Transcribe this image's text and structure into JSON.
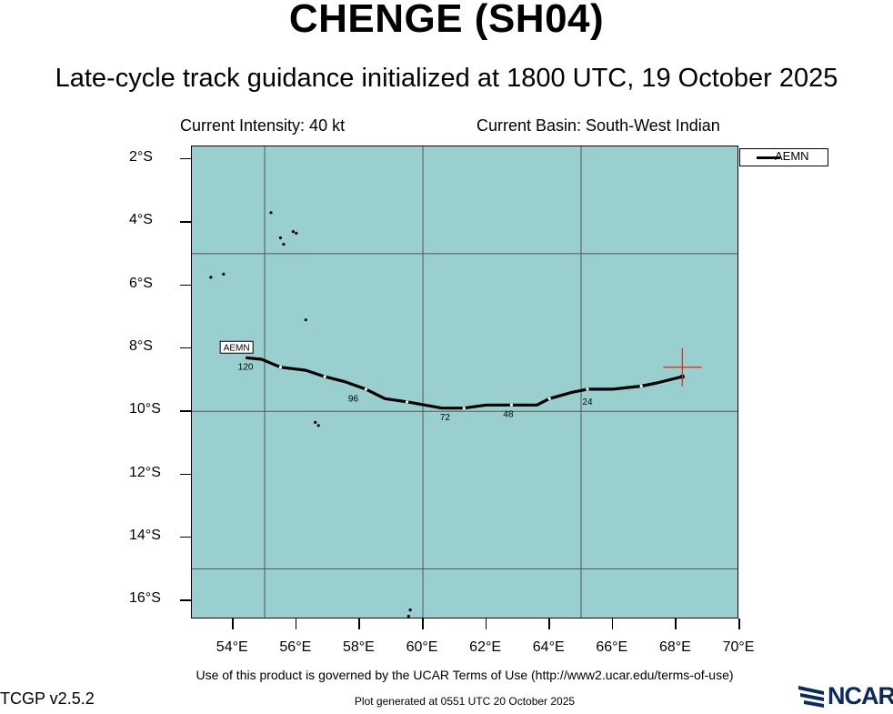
{
  "title": "CHENGE (SH04)",
  "subtitle": "Late-cycle track guidance initialized at 1800 UTC, 19 October 2025",
  "current_intensity": "Current Intensity: 40 kt",
  "current_basin": "Current Basin: South-West Indian",
  "legend": {
    "label": "AEMN"
  },
  "axes": {
    "lat_labels": [
      "2°S",
      "4°S",
      "6°S",
      "8°S",
      "10°S",
      "12°S",
      "14°S",
      "16°S"
    ],
    "lon_labels": [
      "54°E",
      "56°E",
      "58°E",
      "60°E",
      "62°E",
      "64°E",
      "66°E",
      "68°E",
      "70°E"
    ],
    "lon_range": [
      52.7,
      70.0
    ],
    "lat_range": [
      -1.6,
      -16.6
    ]
  },
  "map_data": {
    "track_name": "AEMN",
    "track_points": [
      [
        68.2,
        -8.9
      ],
      [
        67.4,
        -9.1
      ],
      [
        66.9,
        -9.2
      ],
      [
        66.0,
        -9.3
      ],
      [
        65.2,
        -9.3
      ],
      [
        64.7,
        -9.4
      ],
      [
        64.0,
        -9.6
      ],
      [
        63.6,
        -9.8
      ],
      [
        62.8,
        -9.8
      ],
      [
        62.0,
        -9.8
      ],
      [
        61.3,
        -9.9
      ],
      [
        60.6,
        -9.9
      ],
      [
        59.5,
        -9.7
      ],
      [
        58.8,
        -9.6
      ],
      [
        58.2,
        -9.3
      ],
      [
        57.5,
        -9.05
      ],
      [
        56.9,
        -8.9
      ],
      [
        56.3,
        -8.7
      ],
      [
        55.5,
        -8.6
      ],
      [
        54.9,
        -8.35
      ],
      [
        54.4,
        -8.3
      ]
    ],
    "hour_labels": [
      {
        "text": "24",
        "lon": 65.2,
        "lat": -9.5
      },
      {
        "text": "48",
        "lon": 62.7,
        "lat": -9.9
      },
      {
        "text": "72",
        "lon": 60.7,
        "lat": -10.0
      },
      {
        "text": "96",
        "lon": 57.8,
        "lat": -9.4
      },
      {
        "text": "120",
        "lon": 54.4,
        "lat": -8.4
      }
    ],
    "end_label": "AEMN",
    "current_position": {
      "lon": 68.2,
      "lat": -8.6
    },
    "colors": {
      "ocean": "#99cfcf",
      "track": "#000000",
      "marker": "#e03020",
      "grid": "#555555"
    }
  },
  "footer": {
    "terms": "Use of this product is governed by the UCAR Terms of Use (http://www2.ucar.edu/terms-of-use)",
    "version": "TCGP v2.5.2",
    "generated": "Plot generated at 0551 UTC   20 October 2025",
    "logo": "NCAR"
  }
}
